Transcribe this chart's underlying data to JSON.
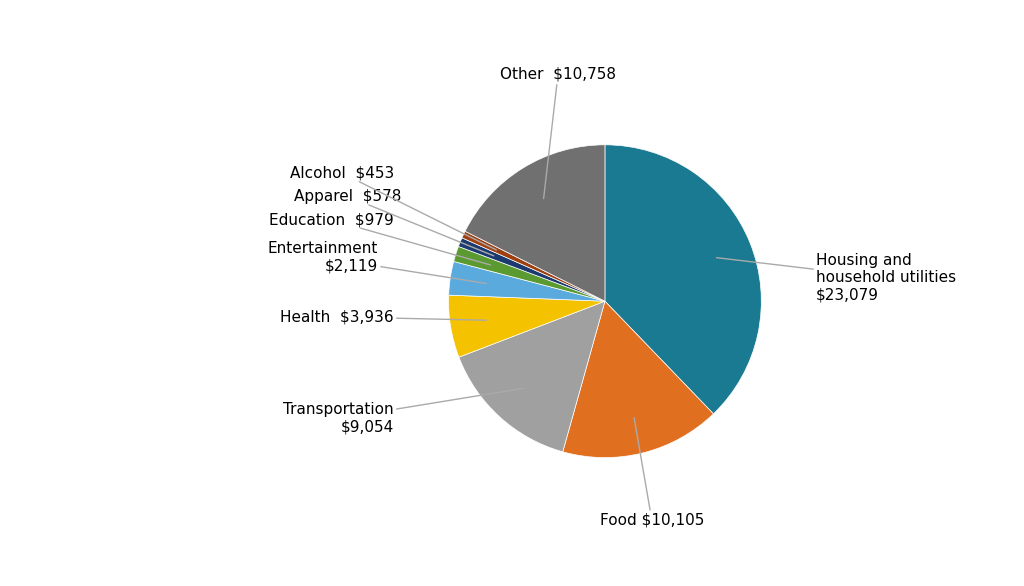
{
  "labels": [
    "Housing and\nhousehold utilities\n$23,079",
    "Food $10,105",
    "Transportation\n$9,054",
    "Health  $3,936",
    "Entertainment\n$2,119",
    "Education  $979",
    "Apparel  $578",
    "Alcohol  $453",
    "Other  $10,758"
  ],
  "values": [
    23079,
    10105,
    9054,
    3936,
    2119,
    979,
    578,
    453,
    10758
  ],
  "colors": [
    "#1a7a91",
    "#e07020",
    "#a0a0a0",
    "#f5c200",
    "#5aaadd",
    "#5a9a30",
    "#1a3a70",
    "#a04010",
    "#707070"
  ],
  "startangle": 90,
  "figsize": [
    10.24,
    5.86
  ],
  "dpi": 100,
  "background_color": "#ffffff"
}
